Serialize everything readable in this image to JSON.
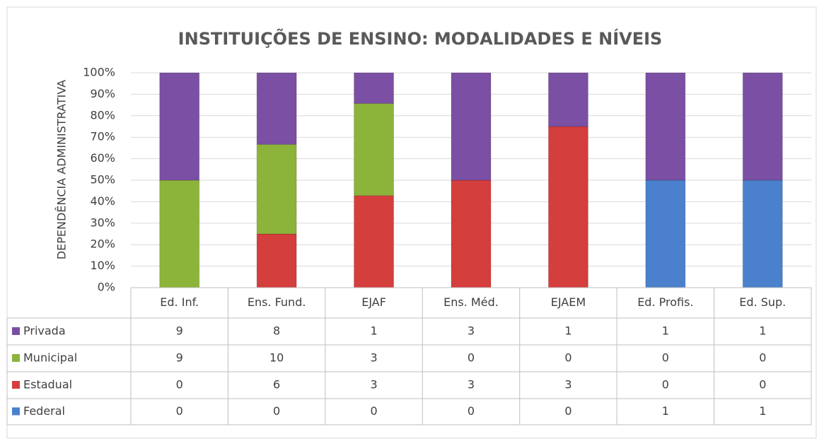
{
  "chart_data": {
    "type": "bar",
    "stacked": "percent",
    "title": "INSTITUIÇÕES DE ENSINO: MODALIDADES E NÍVEIS",
    "y_label": "DEPENDÊNCIA ADMINISTRATIVA",
    "categories": [
      "Ed. Inf.",
      "Ens. Fund.",
      "EJAF",
      "Ens. Méd.",
      "EJAEM",
      "Ed. Profis.",
      "Ed. Sup."
    ],
    "series": [
      {
        "name": "Privada",
        "color": "#7b4fa3",
        "values": [
          9,
          8,
          1,
          3,
          1,
          1,
          1
        ]
      },
      {
        "name": "Municipal",
        "color": "#8cb43a",
        "values": [
          9,
          10,
          3,
          0,
          0,
          0,
          0
        ]
      },
      {
        "name": "Estadual",
        "color": "#d43e3c",
        "values": [
          0,
          6,
          3,
          3,
          3,
          0,
          0
        ]
      },
      {
        "name": "Federal",
        "color": "#4a80cc",
        "values": [
          0,
          0,
          0,
          0,
          0,
          1,
          1
        ]
      }
    ],
    "ylim": [
      0,
      100
    ],
    "yticks": [
      {
        "value": 0,
        "label": "0%"
      },
      {
        "value": 10,
        "label": "10%"
      },
      {
        "value": 20,
        "label": "20%"
      },
      {
        "value": 30,
        "label": "30%"
      },
      {
        "value": 40,
        "label": "40%"
      },
      {
        "value": 50,
        "label": "50%"
      },
      {
        "value": 60,
        "label": "60%"
      },
      {
        "value": 70,
        "label": "70%"
      },
      {
        "value": 80,
        "label": "80%"
      },
      {
        "value": 90,
        "label": "90%"
      },
      {
        "value": 100,
        "label": "100%"
      }
    ],
    "grid": true
  }
}
